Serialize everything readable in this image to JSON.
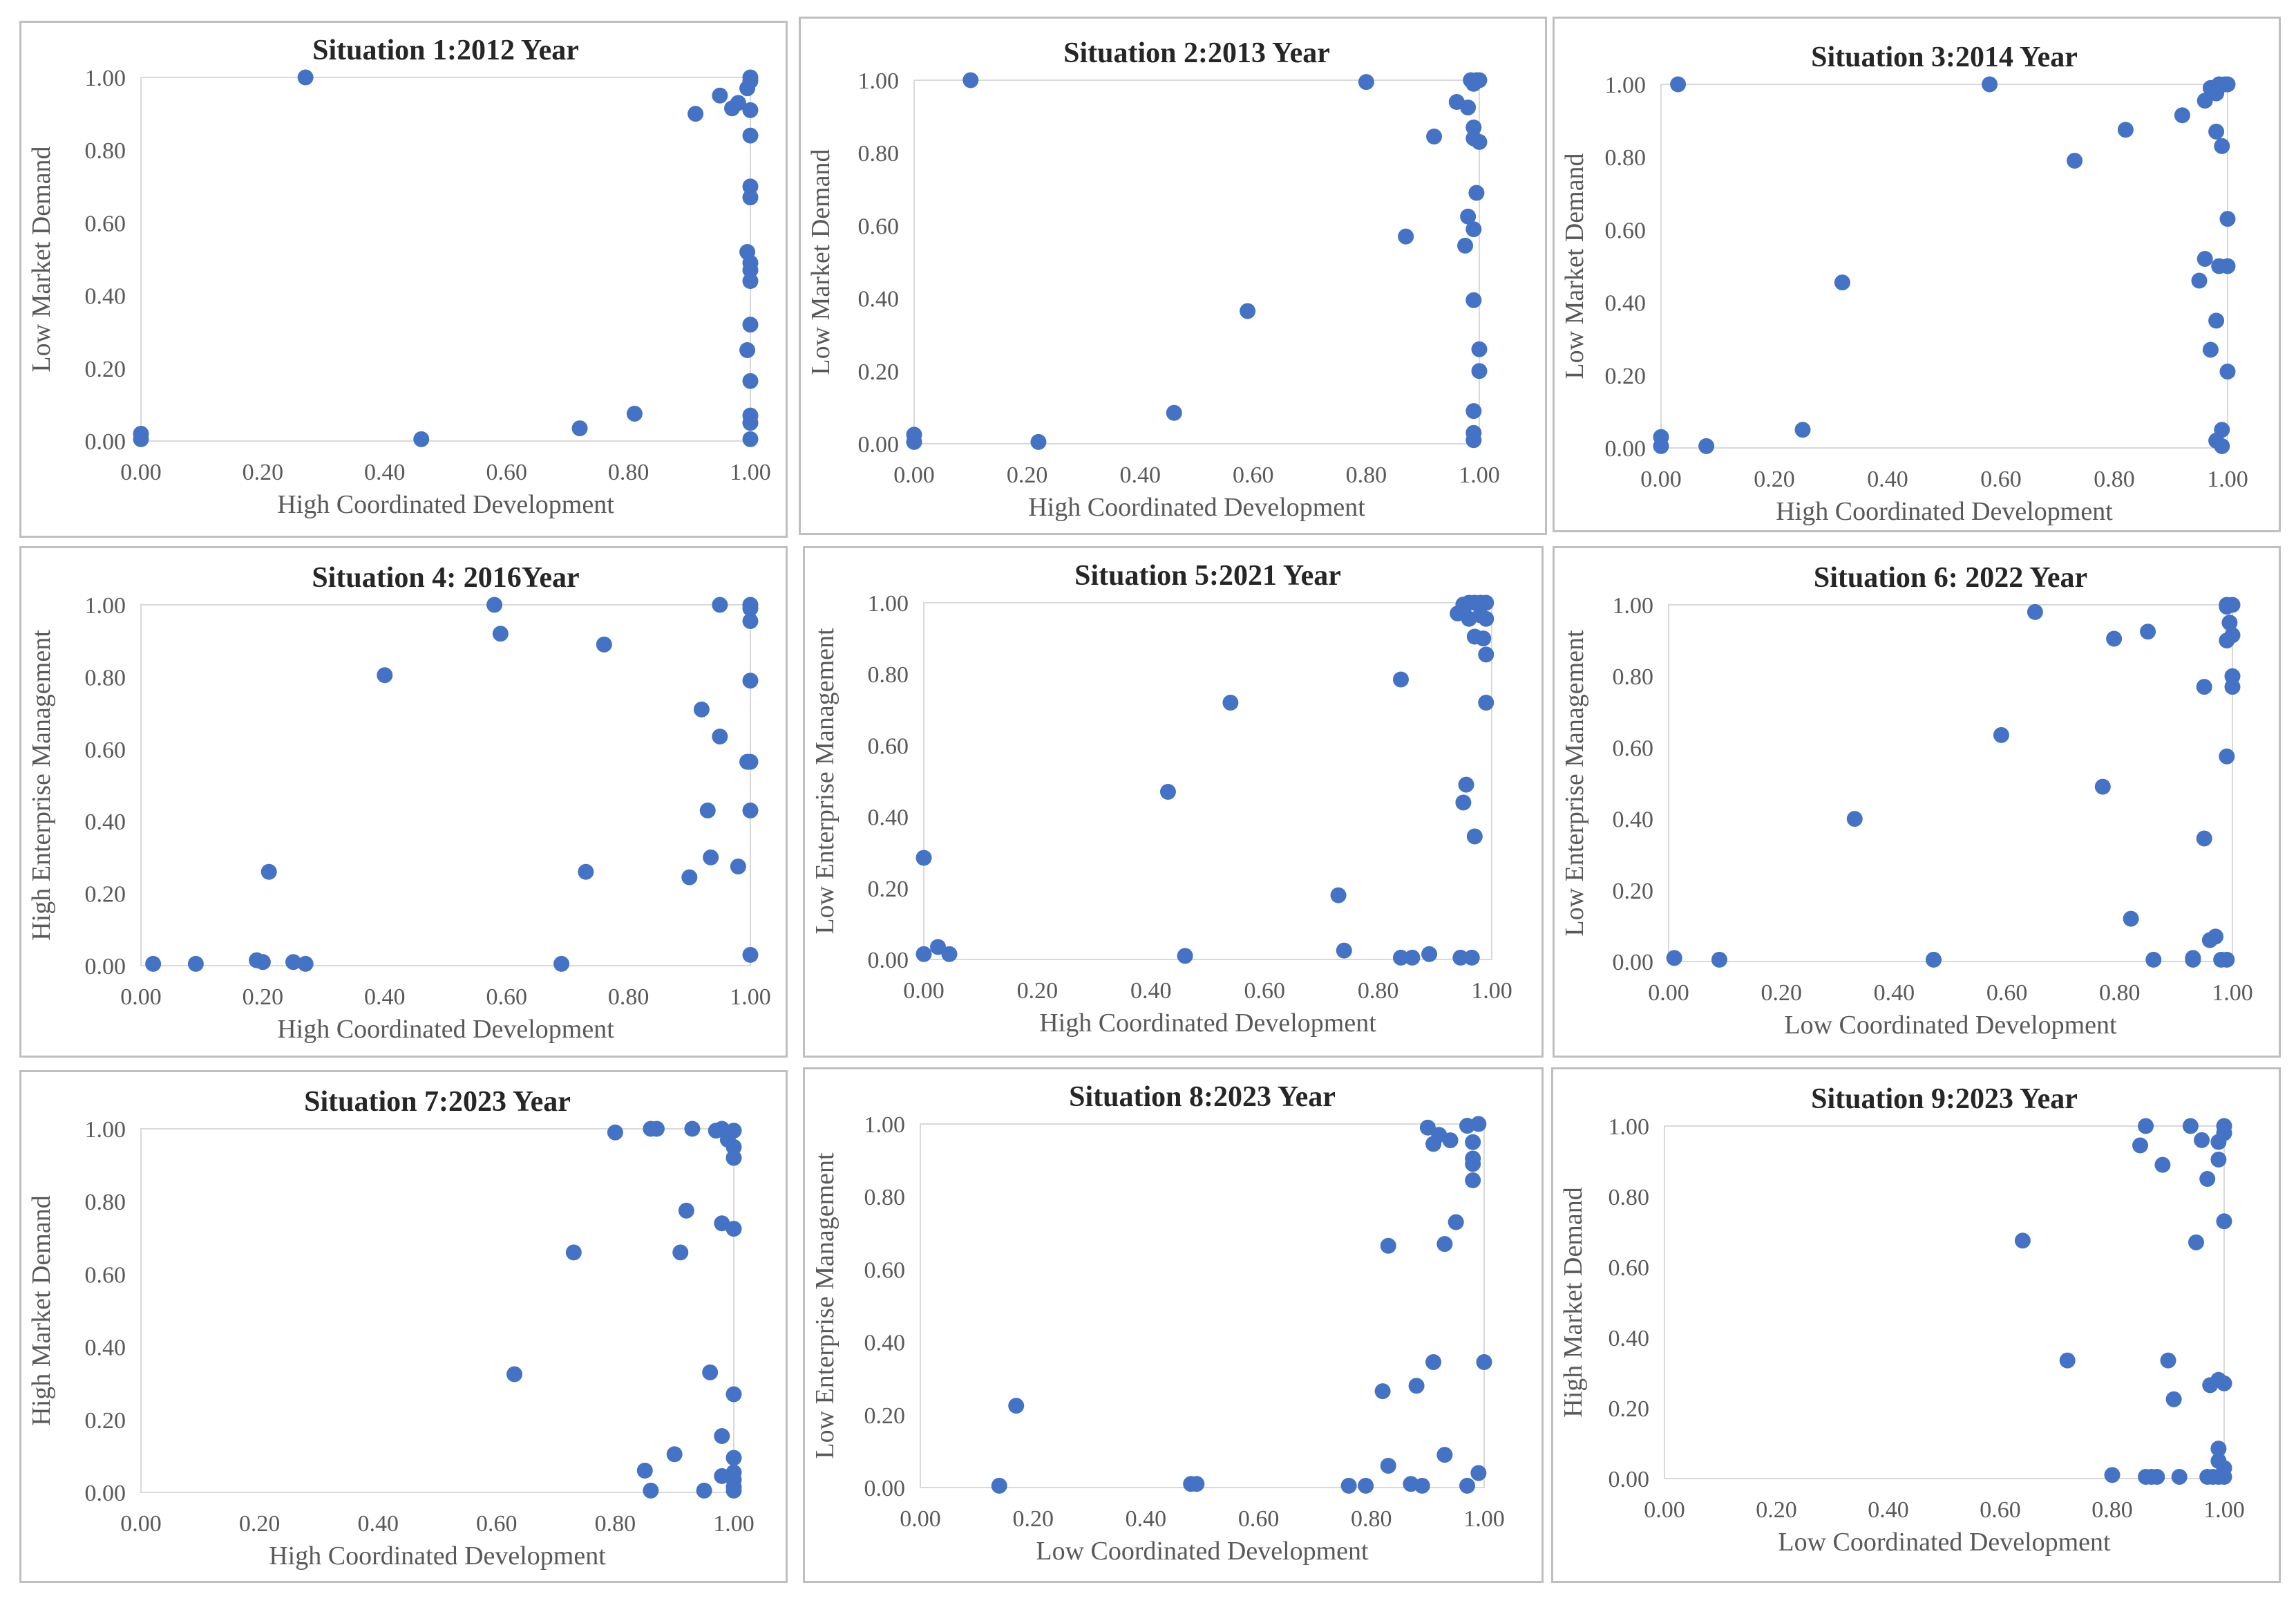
{
  "marker_color": "#4472C4",
  "frame_color": "#bfbfbf",
  "axis_color": "#d9d9d9",
  "text_color": "#595959",
  "title_color": "#262626",
  "chart_data": [
    {
      "type": "scatter",
      "title": "Situation 1:2012 Year",
      "xlabel": "High Coordinated Development",
      "ylabel": "Low Market Demand",
      "xlim": [
        0,
        1
      ],
      "ylim": [
        0,
        1
      ],
      "xticks": [
        "0.00",
        "0.20",
        "0.40",
        "0.60",
        "0.80",
        "1.00"
      ],
      "yticks": [
        "0.00",
        "0.20",
        "0.40",
        "0.60",
        "0.80",
        "1.00"
      ],
      "points": [
        [
          0,
          0.02
        ],
        [
          0,
          0.005
        ],
        [
          0.27,
          1
        ],
        [
          0.46,
          0.005
        ],
        [
          0.72,
          0.035
        ],
        [
          0.81,
          0.075
        ],
        [
          0.91,
          0.9
        ],
        [
          0.95,
          0.95
        ],
        [
          0.97,
          0.915
        ],
        [
          0.98,
          0.93
        ],
        [
          1,
          1
        ],
        [
          1,
          0.99
        ],
        [
          0.995,
          0.97
        ],
        [
          1,
          0.91
        ],
        [
          1,
          0.84
        ],
        [
          1,
          0.7
        ],
        [
          1,
          0.67
        ],
        [
          0.995,
          0.52
        ],
        [
          1,
          0.49
        ],
        [
          1,
          0.47
        ],
        [
          1,
          0.44
        ],
        [
          1,
          0.32
        ],
        [
          0.995,
          0.25
        ],
        [
          1,
          0.165
        ],
        [
          1,
          0.07
        ],
        [
          1,
          0.05
        ],
        [
          1,
          0.005
        ]
      ]
    },
    {
      "type": "scatter",
      "title": "Situation 2:2013 Year",
      "xlabel": "High Coordinated Development",
      "ylabel": "Low Market Demand",
      "xlim": [
        0,
        1
      ],
      "ylim": [
        0,
        1
      ],
      "xticks": [
        "0.00",
        "0.20",
        "0.40",
        "0.60",
        "0.80",
        "1.00"
      ],
      "yticks": [
        "0.00",
        "0.20",
        "0.40",
        "0.60",
        "0.80",
        "1.00"
      ],
      "points": [
        [
          0,
          0.025
        ],
        [
          0,
          0.005
        ],
        [
          0.1,
          1
        ],
        [
          0.22,
          0.005
        ],
        [
          0.46,
          0.085
        ],
        [
          0.59,
          0.365
        ],
        [
          0.8,
          0.995
        ],
        [
          0.87,
          0.57
        ],
        [
          0.92,
          0.845
        ],
        [
          0.96,
          0.94
        ],
        [
          0.98,
          0.925
        ],
        [
          0.985,
          1
        ],
        [
          0.995,
          1
        ],
        [
          1,
          1
        ],
        [
          0.99,
          0.99
        ],
        [
          0.99,
          0.87
        ],
        [
          0.99,
          0.84
        ],
        [
          1,
          0.83
        ],
        [
          0.995,
          0.69
        ],
        [
          0.98,
          0.625
        ],
        [
          0.99,
          0.59
        ],
        [
          0.975,
          0.545
        ],
        [
          0.99,
          0.395
        ],
        [
          1,
          0.26
        ],
        [
          1,
          0.2
        ],
        [
          0.99,
          0.09
        ],
        [
          0.99,
          0.03
        ],
        [
          0.99,
          0.01
        ]
      ]
    },
    {
      "type": "scatter",
      "title": "Situation 3:2014 Year",
      "xlabel": "High Coordinated Development",
      "ylabel": "Low Market Demand",
      "xlim": [
        0,
        1
      ],
      "ylim": [
        0,
        1
      ],
      "xticks": [
        "0.00",
        "0.20",
        "0.40",
        "0.60",
        "0.80",
        "1.00"
      ],
      "yticks": [
        "0.00",
        "0.20",
        "0.40",
        "0.60",
        "0.80",
        "1.00"
      ],
      "points": [
        [
          0,
          0.03
        ],
        [
          0,
          0.005
        ],
        [
          0.03,
          1
        ],
        [
          0.08,
          0.005
        ],
        [
          0.25,
          0.05
        ],
        [
          0.32,
          0.455
        ],
        [
          0.58,
          1
        ],
        [
          0.73,
          0.79
        ],
        [
          0.82,
          0.875
        ],
        [
          0.92,
          0.915
        ],
        [
          0.96,
          0.955
        ],
        [
          0.97,
          0.99
        ],
        [
          0.98,
          0.975
        ],
        [
          0.985,
          1
        ],
        [
          0.995,
          1
        ],
        [
          1,
          1
        ],
        [
          0.98,
          0.87
        ],
        [
          0.99,
          0.83
        ],
        [
          1,
          0.63
        ],
        [
          0.96,
          0.52
        ],
        [
          0.985,
          0.5
        ],
        [
          1,
          0.5
        ],
        [
          0.95,
          0.46
        ],
        [
          0.98,
          0.35
        ],
        [
          0.97,
          0.27
        ],
        [
          1,
          0.21
        ],
        [
          0.99,
          0.05
        ],
        [
          0.98,
          0.02
        ],
        [
          0.99,
          0.005
        ]
      ]
    },
    {
      "type": "scatter",
      "title": "Situation 4: 2016Year",
      "xlabel": "High Coordinated Development",
      "ylabel": "High Enterprise Management",
      "xlim": [
        0,
        1
      ],
      "ylim": [
        0,
        1
      ],
      "xticks": [
        "0.00",
        "0.20",
        "0.40",
        "0.60",
        "0.80",
        "1.00"
      ],
      "yticks": [
        "0.00",
        "0.20",
        "0.40",
        "0.60",
        "0.80",
        "1.00"
      ],
      "points": [
        [
          0.02,
          0.005
        ],
        [
          0.09,
          0.005
        ],
        [
          0.19,
          0.015
        ],
        [
          0.2,
          0.01
        ],
        [
          0.21,
          0.26
        ],
        [
          0.25,
          0.01
        ],
        [
          0.27,
          0.005
        ],
        [
          0.4,
          0.805
        ],
        [
          0.58,
          1
        ],
        [
          0.59,
          0.92
        ],
        [
          0.69,
          0.005
        ],
        [
          0.73,
          0.26
        ],
        [
          0.76,
          0.89
        ],
        [
          0.9,
          0.245
        ],
        [
          0.92,
          0.71
        ],
        [
          0.93,
          0.43
        ],
        [
          0.935,
          0.3
        ],
        [
          0.95,
          0.635
        ],
        [
          0.95,
          1
        ],
        [
          0.98,
          0.275
        ],
        [
          1,
          1
        ],
        [
          1,
          0.99
        ],
        [
          1,
          0.955
        ],
        [
          1,
          0.79
        ],
        [
          0.995,
          0.565
        ],
        [
          1,
          0.565
        ],
        [
          1,
          0.43
        ],
        [
          1,
          0.03
        ]
      ]
    },
    {
      "type": "scatter",
      "title": "Situation 5:2021 Year",
      "xlabel": "High Coordinated Development",
      "ylabel": "Low Enterprise Management",
      "xlim": [
        0,
        1
      ],
      "ylim": [
        0,
        1
      ],
      "xticks": [
        "0.00",
        "0.20",
        "0.40",
        "0.60",
        "0.80",
        "1.00"
      ],
      "yticks": [
        "0.00",
        "0.20",
        "0.40",
        "0.60",
        "0.80",
        "1.00"
      ],
      "points": [
        [
          0,
          0.015
        ],
        [
          0,
          0.285
        ],
        [
          0.025,
          0.035
        ],
        [
          0.045,
          0.015
        ],
        [
          0.43,
          0.47
        ],
        [
          0.46,
          0.01
        ],
        [
          0.54,
          0.72
        ],
        [
          0.73,
          0.18
        ],
        [
          0.74,
          0.025
        ],
        [
          0.84,
          0.785
        ],
        [
          0.84,
          0.005
        ],
        [
          0.86,
          0.005
        ],
        [
          0.89,
          0.015
        ],
        [
          0.94,
          0.97
        ],
        [
          0.95,
          0.995
        ],
        [
          0.96,
          1
        ],
        [
          0.97,
          1
        ],
        [
          0.98,
          1
        ],
        [
          0.99,
          1
        ],
        [
          0.95,
          0.98
        ],
        [
          0.96,
          0.955
        ],
        [
          0.98,
          0.965
        ],
        [
          0.99,
          0.955
        ],
        [
          0.97,
          0.905
        ],
        [
          0.985,
          0.9
        ],
        [
          0.99,
          0.855
        ],
        [
          0.99,
          0.72
        ],
        [
          0.955,
          0.49
        ],
        [
          0.95,
          0.44
        ],
        [
          0.97,
          0.345
        ],
        [
          0.945,
          0.005
        ],
        [
          0.965,
          0.005
        ]
      ]
    },
    {
      "type": "scatter",
      "title": "Situation 6: 2022 Year",
      "xlabel": "Low Coordinated Development",
      "ylabel": "Low Enterprise Management",
      "xlim": [
        0,
        1
      ],
      "ylim": [
        0,
        1
      ],
      "xticks": [
        "0.00",
        "0.20",
        "0.40",
        "0.60",
        "0.80",
        "1.00"
      ],
      "yticks": [
        "0.00",
        "0.20",
        "0.40",
        "0.60",
        "0.80",
        "1.00"
      ],
      "points": [
        [
          0.01,
          0.01
        ],
        [
          0.09,
          0.005
        ],
        [
          0.33,
          0.4
        ],
        [
          0.47,
          0.005
        ],
        [
          0.59,
          0.635
        ],
        [
          0.65,
          0.98
        ],
        [
          0.77,
          0.49
        ],
        [
          0.79,
          0.905
        ],
        [
          0.82,
          0.12
        ],
        [
          0.85,
          0.925
        ],
        [
          0.86,
          0.005
        ],
        [
          0.93,
          0.005
        ],
        [
          0.93,
          0.01
        ],
        [
          0.95,
          0.77
        ],
        [
          0.95,
          0.345
        ],
        [
          0.96,
          0.06
        ],
        [
          0.97,
          0.07
        ],
        [
          0.98,
          0.005
        ],
        [
          0.99,
          0.005
        ],
        [
          0.99,
          1
        ],
        [
          1,
          1
        ],
        [
          0.99,
          0.995
        ],
        [
          0.995,
          0.95
        ],
        [
          0.99,
          0.9
        ],
        [
          1,
          0.915
        ],
        [
          1,
          0.8
        ],
        [
          1,
          0.77
        ],
        [
          0.99,
          0.575
        ]
      ]
    },
    {
      "type": "scatter",
      "title": "Situation 7:2023 Year",
      "xlabel": "High Coordinated Development",
      "ylabel": "High Market Demand",
      "xlim": [
        0,
        1
      ],
      "ylim": [
        0,
        1
      ],
      "xticks": [
        "0.00",
        "0.20",
        "0.40",
        "0.60",
        "0.80",
        "1.00"
      ],
      "yticks": [
        "0.00",
        "0.20",
        "0.40",
        "0.60",
        "0.80",
        "1.00"
      ],
      "points": [
        [
          0.63,
          0.325
        ],
        [
          0.73,
          0.66
        ],
        [
          0.8,
          0.99
        ],
        [
          0.86,
          1
        ],
        [
          0.87,
          1
        ],
        [
          0.93,
          1
        ],
        [
          0.97,
          0.995
        ],
        [
          0.98,
          1
        ],
        [
          1,
          0.995
        ],
        [
          0.99,
          0.97
        ],
        [
          1,
          0.95
        ],
        [
          1,
          0.92
        ],
        [
          0.92,
          0.775
        ],
        [
          0.91,
          0.66
        ],
        [
          0.98,
          0.74
        ],
        [
          1,
          0.725
        ],
        [
          0.85,
          0.06
        ],
        [
          0.86,
          0.005
        ],
        [
          0.9,
          0.105
        ],
        [
          0.95,
          0.005
        ],
        [
          0.96,
          0.33
        ],
        [
          0.98,
          0.045
        ],
        [
          0.98,
          0.155
        ],
        [
          1,
          0.27
        ],
        [
          1,
          0.095
        ],
        [
          1,
          0.055
        ],
        [
          1,
          0.035
        ],
        [
          1,
          0.015
        ],
        [
          1,
          0.005
        ]
      ]
    },
    {
      "type": "scatter",
      "title": "Situation 8:2023 Year",
      "xlabel": "Low Coordinated Development",
      "ylabel": "Low Enterprise Management",
      "xlim": [
        0,
        1
      ],
      "ylim": [
        0,
        1
      ],
      "xticks": [
        "0.00",
        "0.20",
        "0.40",
        "0.60",
        "0.80",
        "1.00"
      ],
      "yticks": [
        "0.00",
        "0.20",
        "0.40",
        "0.60",
        "0.80",
        "1.00"
      ],
      "points": [
        [
          0.14,
          0.005
        ],
        [
          0.17,
          0.225
        ],
        [
          0.48,
          0.01
        ],
        [
          0.49,
          0.01
        ],
        [
          0.76,
          0.005
        ],
        [
          0.79,
          0.005
        ],
        [
          0.82,
          0.265
        ],
        [
          0.83,
          0.06
        ],
        [
          0.83,
          0.665
        ],
        [
          0.87,
          0.01
        ],
        [
          0.88,
          0.28
        ],
        [
          0.89,
          0.005
        ],
        [
          0.9,
          0.99
        ],
        [
          0.91,
          0.945
        ],
        [
          0.92,
          0.97
        ],
        [
          0.91,
          0.345
        ],
        [
          0.93,
          0.67
        ],
        [
          0.93,
          0.09
        ],
        [
          0.94,
          0.955
        ],
        [
          0.95,
          0.73
        ],
        [
          0.97,
          0.995
        ],
        [
          0.98,
          0.95
        ],
        [
          0.98,
          0.905
        ],
        [
          0.98,
          0.89
        ],
        [
          0.98,
          0.845
        ],
        [
          0.99,
          1
        ],
        [
          0.99,
          0.04
        ],
        [
          1,
          0.345
        ],
        [
          0.97,
          0.005
        ]
      ]
    },
    {
      "type": "scatter",
      "title": "Situation 9:2023 Year",
      "xlabel": "Low Coordinated Development",
      "ylabel": "High Market Demand",
      "xlim": [
        0,
        1
      ],
      "ylim": [
        0,
        1
      ],
      "xticks": [
        "0.00",
        "0.20",
        "0.40",
        "0.60",
        "0.80",
        "1.00"
      ],
      "yticks": [
        "0.00",
        "0.20",
        "0.40",
        "0.60",
        "0.80",
        "1.00"
      ],
      "points": [
        [
          0.64,
          0.675
        ],
        [
          0.72,
          0.335
        ],
        [
          0.8,
          0.01
        ],
        [
          0.85,
          0.945
        ],
        [
          0.86,
          1
        ],
        [
          0.86,
          0.005
        ],
        [
          0.87,
          0.005
        ],
        [
          0.88,
          0.005
        ],
        [
          0.89,
          0.89
        ],
        [
          0.9,
          0.335
        ],
        [
          0.91,
          0.225
        ],
        [
          0.92,
          0.005
        ],
        [
          0.94,
          1
        ],
        [
          0.95,
          0.67
        ],
        [
          0.96,
          0.96
        ],
        [
          0.97,
          0.85
        ],
        [
          0.975,
          0.265
        ],
        [
          0.97,
          0.005
        ],
        [
          0.98,
          0.005
        ],
        [
          0.99,
          0.005
        ],
        [
          1,
          0.005
        ],
        [
          0.99,
          0.955
        ],
        [
          0.99,
          0.905
        ],
        [
          1,
          1
        ],
        [
          1,
          0.98
        ],
        [
          1,
          0.73
        ],
        [
          0.99,
          0.28
        ],
        [
          1,
          0.27
        ],
        [
          0.99,
          0.085
        ],
        [
          0.99,
          0.05
        ],
        [
          1,
          0.03
        ]
      ]
    }
  ]
}
